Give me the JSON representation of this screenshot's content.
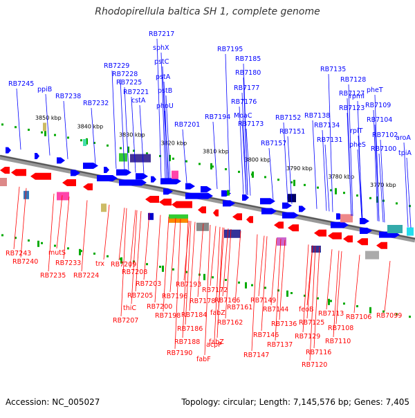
{
  "title": "Rhodopirellula baltica SH 1, complete genome",
  "accession": "Accession: NC_005027",
  "topology": "Topology: circular; Length: 7,145,576 bp; Genes: 7,405",
  "colors": {
    "forward": "#0000ff",
    "reverse": "#ff0000",
    "backbone": "#777777",
    "tick": "#00aa00"
  },
  "kbp_ticks": [
    "3850 kbp",
    "3840 kbp",
    "3830 kbp",
    "3820 kbp",
    "3810 kbp",
    "3800 kbp",
    "3790 kbp",
    "3780 kbp",
    "3770 kbp"
  ],
  "forward_labels": [
    "RB7245",
    "ppiB",
    "RB7238",
    "RB7232",
    "RB7229",
    "RB7228",
    "RB7225",
    "RB7221",
    "cstA",
    "RB7217",
    "sphX",
    "pstC",
    "pstA",
    "pstB",
    "phoU",
    "RB7201",
    "RB7195",
    "RB7194",
    "RB7185",
    "RB7180",
    "RB7177",
    "RB7176",
    "MoaC",
    "RB7173",
    "RB7157",
    "RB7152",
    "RB7151",
    "RB7138",
    "RB7135",
    "RB7134",
    "RB7131",
    "RB7128",
    "RB7127",
    "RB7123",
    "rpmI",
    "rplT",
    "pheS",
    "pheT",
    "RB7109",
    "RB7104",
    "RB7102",
    "RB7100",
    "aroA",
    "tpiA"
  ],
  "reverse_labels": [
    "RB7243",
    "RB7240",
    "mutS",
    "RB7235",
    "RB7233",
    "RB7224",
    "trx",
    "RB7209",
    "RB7208",
    "RB7205",
    "RB7203",
    "thiC",
    "RB7207",
    "RB7200",
    "RB7198",
    "RB7196",
    "RB7193",
    "RB7190",
    "RB7188",
    "RB7186",
    "RB7184",
    "RB7178",
    "RB7172",
    "fabZ",
    "fabZ",
    "acpP",
    "fabF",
    "RB7166",
    "RB7162",
    "RB7161",
    "RB7149",
    "RB7147",
    "RB7146",
    "RB7144",
    "RB7137",
    "RB7136",
    "feoB",
    "RB7129",
    "RB7125",
    "RB7120",
    "RB7116",
    "RB7113",
    "RB7110",
    "RB7108",
    "RB7106",
    "RB7099"
  ]
}
